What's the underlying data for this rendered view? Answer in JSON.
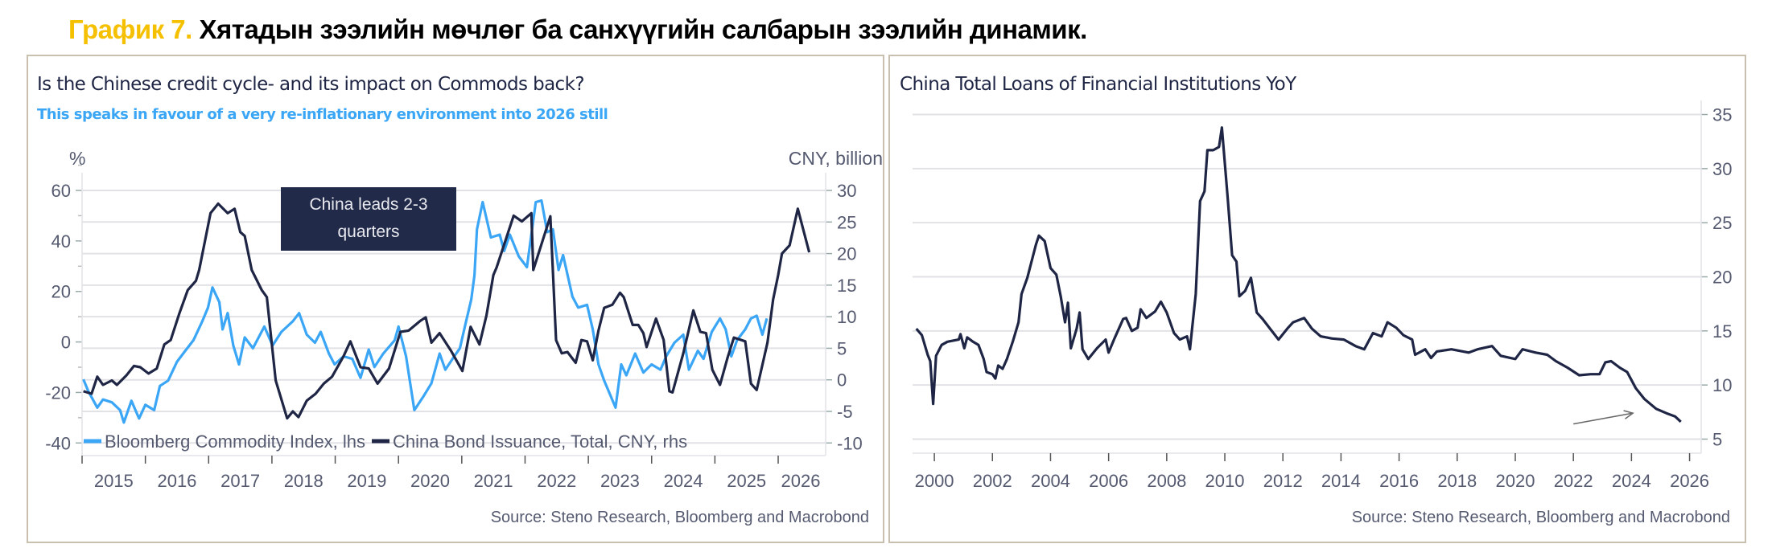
{
  "heading": {
    "number": "График 7.",
    "text": " Хятадын зээлийн мөчлөг ба санхүүгийн салбарын зээлийн динамик."
  },
  "colors": {
    "navy": "#1f2544",
    "blue": "#3aa6f5",
    "heading_accent": "#f5c000",
    "grid": "#e2e2e6",
    "axis_text": "#555a70"
  },
  "chart_data": [
    {
      "type": "line",
      "title": "Is the Chinese credit cycle- and its impact on Commods back?",
      "subtitle": "This speaks in favour of a very re-inflationary environment into 2026 still",
      "ylabel_left": "%",
      "ylabel_right": "CNY, billion",
      "annotation": "China leads 2-3 quarters",
      "source": "Source: Steno Research, Bloomberg and Macrobond",
      "xlim": [
        2015,
        2026.75
      ],
      "ylim_left": [
        -45,
        67
      ],
      "ylim_right": [
        -12,
        32.8
      ],
      "xticks": [
        "2015",
        "2016",
        "2017",
        "2018",
        "2019",
        "2020",
        "2021",
        "2022",
        "2023",
        "2024",
        "2025",
        "2026"
      ],
      "yticks_left": [
        "60",
        "40",
        "20",
        "0",
        "-20",
        "-40"
      ],
      "yticks_right": [
        "30",
        "25",
        "20",
        "15",
        "10",
        "5",
        "0",
        "-5",
        "-10"
      ],
      "grid": true,
      "legend_placement": "bottom-left inside",
      "series": [
        {
          "name": "Bloomberg Commodity Index, lhs",
          "axis": "left",
          "color": "#3aa6f5",
          "x": [
            2015.02,
            2015.1,
            2015.24,
            2015.33,
            2015.47,
            2015.6,
            2015.66,
            2015.78,
            2015.9,
            2016.0,
            2016.14,
            2016.23,
            2016.36,
            2016.5,
            2016.63,
            2016.76,
            2016.9,
            2016.99,
            2017.06,
            2017.17,
            2017.22,
            2017.3,
            2017.39,
            2017.48,
            2017.57,
            2017.7,
            2017.88,
            2018.01,
            2018.15,
            2018.33,
            2018.43,
            2018.55,
            2018.68,
            2018.77,
            2018.9,
            2018.99,
            2019.13,
            2019.27,
            2019.4,
            2019.53,
            2019.62,
            2019.76,
            2019.94,
            2020.0,
            2020.12,
            2020.25,
            2020.39,
            2020.52,
            2020.65,
            2020.74,
            2020.88,
            2020.97,
            2021.06,
            2021.15,
            2021.2,
            2021.24,
            2021.33,
            2021.46,
            2021.6,
            2021.67,
            2021.76,
            2021.9,
            2022.03,
            2022.17,
            2022.26,
            2022.35,
            2022.44,
            2022.53,
            2022.6,
            2022.75,
            2022.84,
            2022.98,
            2023.07,
            2023.16,
            2023.25,
            2023.34,
            2023.43,
            2023.52,
            2023.6,
            2023.74,
            2023.87,
            2024.0,
            2024.14,
            2024.23,
            2024.36,
            2024.5,
            2024.59,
            2024.73,
            2024.82,
            2024.95,
            2025.08,
            2025.17,
            2025.26,
            2025.35,
            2025.48,
            2025.57,
            2025.66,
            2025.75,
            2025.82
          ],
          "y": [
            -14.8,
            -19.6,
            -26,
            -22.8,
            -23.9,
            -27,
            -31.9,
            -23.3,
            -30.3,
            -24.9,
            -27,
            -17.4,
            -15.3,
            -7.8,
            -3.5,
            0.7,
            8.2,
            13.6,
            21.6,
            15.7,
            5,
            11.4,
            -1.4,
            -8.9,
            1.8,
            -2.5,
            6.1,
            -1.4,
            4,
            8.2,
            11.4,
            2.9,
            -0.3,
            4,
            -4.6,
            -8.9,
            -5.7,
            -6.7,
            -14.2,
            -3,
            -9.9,
            -4.6,
            0.7,
            6.1,
            -5.7,
            -27,
            -21.7,
            -16.4,
            -4.6,
            -11,
            -5.7,
            -2.5,
            7.2,
            16.8,
            26.4,
            44.6,
            55.4,
            41.4,
            42.5,
            36,
            42.5,
            33.9,
            29.6,
            55.4,
            56,
            43.5,
            44.6,
            28.5,
            34.4,
            17.9,
            13.6,
            14.7,
            5,
            -8.9,
            -15.3,
            -20.6,
            -26,
            -8.9,
            -13.2,
            -4.6,
            -12.1,
            -8.9,
            -11,
            -5.7,
            -0.3,
            2.9,
            -11,
            -3.5,
            -6.7,
            4,
            9.3,
            5,
            -5.7,
            0.7,
            5,
            9.3,
            10.4,
            2.9,
            9.3
          ]
        },
        {
          "name": "China Bond Issuance, Total, CNY, rhs",
          "axis": "right",
          "color": "#1f2544",
          "x": [
            2015.02,
            2015.15,
            2015.24,
            2015.33,
            2015.47,
            2015.55,
            2015.7,
            2015.82,
            2015.92,
            2016.05,
            2016.18,
            2016.3,
            2016.4,
            2016.54,
            2016.67,
            2016.8,
            2016.85,
            2017.03,
            2017.15,
            2017.3,
            2017.41,
            2017.5,
            2017.57,
            2017.68,
            2017.84,
            2017.92,
            2018.06,
            2018.24,
            2018.33,
            2018.42,
            2018.55,
            2018.69,
            2018.82,
            2018.95,
            2019.13,
            2019.24,
            2019.4,
            2019.53,
            2019.67,
            2019.85,
            2020.03,
            2020.16,
            2020.34,
            2020.43,
            2020.52,
            2020.65,
            2020.83,
            2021.01,
            2021.14,
            2021.28,
            2021.39,
            2021.5,
            2021.55,
            2021.82,
            2021.95,
            2022.1,
            2022.13,
            2022.4,
            2022.49,
            2022.58,
            2022.67,
            2022.8,
            2022.89,
            2022.98,
            2023.07,
            2023.16,
            2023.25,
            2023.38,
            2023.5,
            2023.56,
            2023.7,
            2023.79,
            2023.87,
            2023.92,
            2024.07,
            2024.19,
            2024.28,
            2024.33,
            2024.5,
            2024.66,
            2024.77,
            2024.86,
            2024.96,
            2025.08,
            2025.2,
            2025.3,
            2025.48,
            2025.57,
            2025.66,
            2025.83,
            2025.92,
            2026.0,
            2026.06,
            2026.18,
            2026.31,
            2026.49
          ],
          "y": [
            -1.8,
            -2.2,
            0.5,
            -0.8,
            -0.1,
            -0.8,
            0.7,
            2.2,
            2,
            1,
            1.8,
            5.6,
            6.3,
            10.6,
            14.2,
            15.7,
            17.4,
            26.4,
            27.9,
            26.4,
            27.1,
            23.4,
            22.8,
            17.4,
            14.2,
            13.1,
            -0.1,
            -6.1,
            -5,
            -5.9,
            -3.3,
            -2.2,
            -0.6,
            0.5,
            3.7,
            6.1,
            2,
            1.8,
            -0.6,
            1.8,
            7.6,
            7.8,
            9.3,
            9.9,
            5.9,
            7.4,
            4.6,
            1.4,
            8.4,
            5.6,
            10.2,
            16.6,
            17.8,
            26,
            25.1,
            26.4,
            17.4,
            25.9,
            6.3,
            4.2,
            4.4,
            2.7,
            6.3,
            6.1,
            3.1,
            7.8,
            11.4,
            11.9,
            13.8,
            13.1,
            8.7,
            8.7,
            7.4,
            5.2,
            9.7,
            6.3,
            -1.8,
            -2,
            4.2,
            11,
            7.6,
            7.4,
            1.6,
            -0.8,
            3.5,
            6.7,
            6.1,
            -0.6,
            -1.6,
            5.9,
            12.7,
            16.6,
            20,
            21.3,
            27.1,
            20.2
          ]
        }
      ]
    },
    {
      "type": "line",
      "title": "China Total Loans of Financial Institutions YoY",
      "source": "Source: Steno Research, Bloomberg and Macrobond",
      "xlim": [
        1999.25,
        2026.4
      ],
      "ylim": [
        3.7,
        36.3
      ],
      "xticks": [
        "2000",
        "2002",
        "2004",
        "2006",
        "2008",
        "2010",
        "2012",
        "2014",
        "2016",
        "2018",
        "2020",
        "2022",
        "2024",
        "2026"
      ],
      "yticks": [
        "35",
        "30",
        "25",
        "20",
        "15",
        "10",
        "5"
      ],
      "yaxis_side": "right",
      "grid": true,
      "arrow_annotation": {
        "from": [
          2022.0,
          6.4
        ],
        "to": [
          2024.05,
          7.4
        ]
      },
      "series": [
        {
          "color": "#1f2544",
          "x": [
            1999.38,
            1999.57,
            1999.77,
            1999.86,
            1999.96,
            2000.06,
            2000.25,
            2000.45,
            2000.84,
            2000.9,
            2001.03,
            2001.13,
            2001.33,
            2001.52,
            2001.7,
            2001.8,
            2002.0,
            2002.1,
            2002.2,
            2002.35,
            2002.5,
            2002.7,
            2002.9,
            2003.0,
            2003.2,
            2003.5,
            2003.6,
            2003.8,
            2004.0,
            2004.2,
            2004.35,
            2004.5,
            2004.6,
            2004.7,
            2004.9,
            2005.0,
            2005.1,
            2005.3,
            2005.6,
            2005.9,
            2006.0,
            2006.2,
            2006.5,
            2006.6,
            2006.8,
            2007.0,
            2007.1,
            2007.3,
            2007.6,
            2007.8,
            2008.0,
            2008.25,
            2008.45,
            2008.7,
            2008.8,
            2009.0,
            2009.15,
            2009.3,
            2009.4,
            2009.6,
            2009.8,
            2009.9,
            2010.1,
            2010.25,
            2010.4,
            2010.5,
            2010.7,
            2010.9,
            2011.1,
            2011.3,
            2011.56,
            2011.85,
            2012.15,
            2012.35,
            2012.73,
            2013.0,
            2013.3,
            2013.7,
            2014.1,
            2014.5,
            2014.8,
            2015.1,
            2015.4,
            2015.6,
            2015.9,
            2016.15,
            2016.45,
            2016.55,
            2016.9,
            2017.1,
            2017.3,
            2017.8,
            2018.4,
            2018.7,
            2019.2,
            2019.5,
            2020.0,
            2020.25,
            2020.7,
            2021.1,
            2021.4,
            2021.8,
            2022.2,
            2022.6,
            2022.9,
            2023.1,
            2023.3,
            2023.6,
            2023.85,
            2024.15,
            2024.45,
            2024.85,
            2025.2,
            2025.5,
            2025.7
          ],
          "y": [
            15.2,
            14.6,
            12.8,
            12.2,
            8.25,
            12.7,
            13.7,
            14,
            14.2,
            14.7,
            13.4,
            14.4,
            14,
            13.7,
            12.4,
            11.2,
            11,
            10.6,
            11.8,
            11.5,
            12.4,
            14,
            15.8,
            18.4,
            19.9,
            23,
            23.8,
            23.3,
            20.8,
            20.2,
            18.2,
            15.8,
            17.6,
            13.4,
            15.2,
            16.7,
            13.3,
            12.4,
            13.4,
            14.2,
            13,
            14.3,
            16.1,
            16.2,
            15,
            15.3,
            17,
            16.2,
            16.8,
            17.7,
            16.7,
            14.8,
            14.2,
            14.5,
            13.3,
            18.4,
            27,
            27.9,
            31.7,
            31.7,
            32,
            33.8,
            27.3,
            22,
            21.4,
            18.2,
            18.7,
            19.9,
            16.7,
            16.1,
            15.2,
            14.2,
            15.2,
            15.8,
            16.2,
            15.2,
            14.5,
            14.3,
            14.2,
            13.6,
            13.3,
            14.8,
            14.5,
            15.8,
            15.3,
            14.6,
            14.2,
            12.8,
            13.3,
            12.5,
            13.1,
            13.3,
            13,
            13.3,
            13.6,
            12.7,
            12.4,
            13.3,
            13,
            12.8,
            12.2,
            11.6,
            10.9,
            11,
            11,
            12.1,
            12.2,
            11.6,
            11.2,
            9.7,
            8.7,
            7.8,
            7.4,
            7.1,
            6.6
          ]
        }
      ]
    }
  ]
}
